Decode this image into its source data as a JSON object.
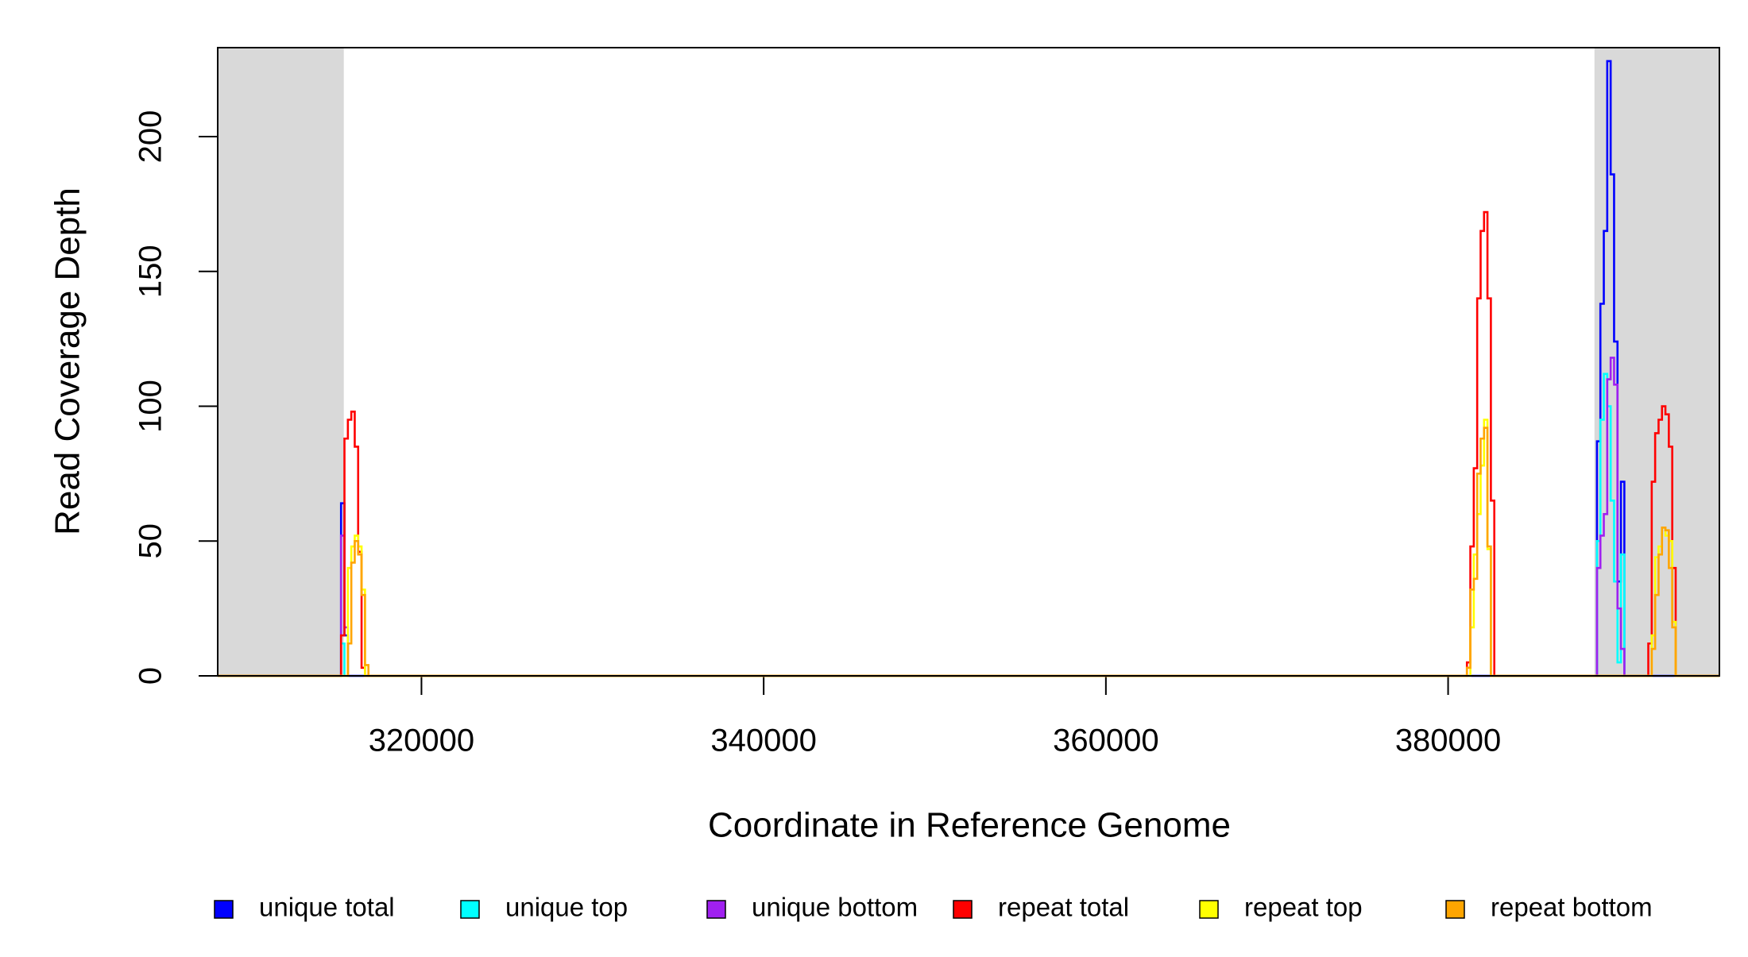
{
  "chart_data": {
    "type": "step",
    "xlabel": "Coordinate in Reference Genome",
    "ylabel": "Read Coverage Depth",
    "xlim": [
      308092,
      395855
    ],
    "ylim": [
      0,
      233
    ],
    "xticks": [
      320000,
      340000,
      360000,
      380000
    ],
    "yticks": [
      0,
      50,
      100,
      150,
      200
    ],
    "shaded_ranges": [
      [
        308092,
        315461
      ],
      [
        388553,
        395855
      ]
    ],
    "shade_color": "#d9d9d9",
    "legend": "bottom",
    "x": [
      308100,
      315300,
      315500,
      315700,
      315900,
      316100,
      316300,
      316500,
      316700,
      316900,
      381100,
      381300,
      381500,
      381700,
      381900,
      382100,
      382300,
      382500,
      382700,
      388700,
      388900,
      389100,
      389300,
      389500,
      389700,
      389900,
      390100,
      390300,
      391700,
      391900,
      392100,
      392300,
      392500,
      392700,
      392900,
      393100,
      393300,
      395800
    ],
    "series": [
      {
        "name": "unique total",
        "color": "#0000ff",
        "values": [
          0,
          64,
          15,
          0,
          0,
          0,
          0,
          0,
          0,
          0,
          0,
          0,
          0,
          0,
          0,
          0,
          0,
          0,
          0,
          87,
          138,
          165,
          228,
          186,
          124,
          35,
          72,
          0,
          0,
          0,
          0,
          0,
          0,
          0,
          0,
          0,
          0,
          0
        ]
      },
      {
        "name": "unique top",
        "color": "#00ffff",
        "values": [
          0,
          12,
          0,
          0,
          0,
          0,
          0,
          0,
          0,
          0,
          0,
          0,
          0,
          0,
          0,
          0,
          0,
          0,
          0,
          50,
          95,
          112,
          100,
          65,
          35,
          5,
          45,
          0,
          0,
          0,
          0,
          0,
          0,
          0,
          0,
          0,
          0,
          0
        ]
      },
      {
        "name": "unique bottom",
        "color": "#a020f0",
        "values": [
          0,
          52,
          18,
          0,
          0,
          0,
          0,
          0,
          0,
          0,
          0,
          0,
          0,
          0,
          0,
          0,
          0,
          0,
          0,
          40,
          52,
          60,
          110,
          118,
          108,
          25,
          10,
          0,
          0,
          0,
          0,
          0,
          0,
          0,
          0,
          0,
          0,
          0
        ]
      },
      {
        "name": "repeat total",
        "color": "#ff0000",
        "values": [
          0,
          15,
          88,
          95,
          98,
          85,
          46,
          3,
          0,
          0,
          5,
          48,
          77,
          140,
          165,
          172,
          140,
          65,
          0,
          0,
          0,
          0,
          0,
          0,
          0,
          0,
          0,
          0,
          12,
          72,
          90,
          95,
          100,
          97,
          85,
          40,
          0,
          0
        ]
      },
      {
        "name": "repeat top",
        "color": "#ffff00",
        "values": [
          0,
          0,
          0,
          40,
          48,
          52,
          48,
          32,
          0,
          0,
          0,
          18,
          45,
          60,
          78,
          95,
          47,
          0,
          0,
          0,
          0,
          0,
          0,
          0,
          0,
          0,
          0,
          0,
          0,
          15,
          44,
          48,
          55,
          52,
          50,
          20,
          0,
          0
        ]
      },
      {
        "name": "repeat bottom",
        "color": "#ffa500",
        "values": [
          0,
          0,
          0,
          12,
          42,
          50,
          45,
          30,
          4,
          0,
          3,
          32,
          36,
          75,
          88,
          92,
          48,
          0,
          0,
          0,
          0,
          0,
          0,
          0,
          0,
          0,
          0,
          0,
          0,
          10,
          30,
          45,
          55,
          54,
          40,
          18,
          0,
          0
        ]
      }
    ]
  }
}
